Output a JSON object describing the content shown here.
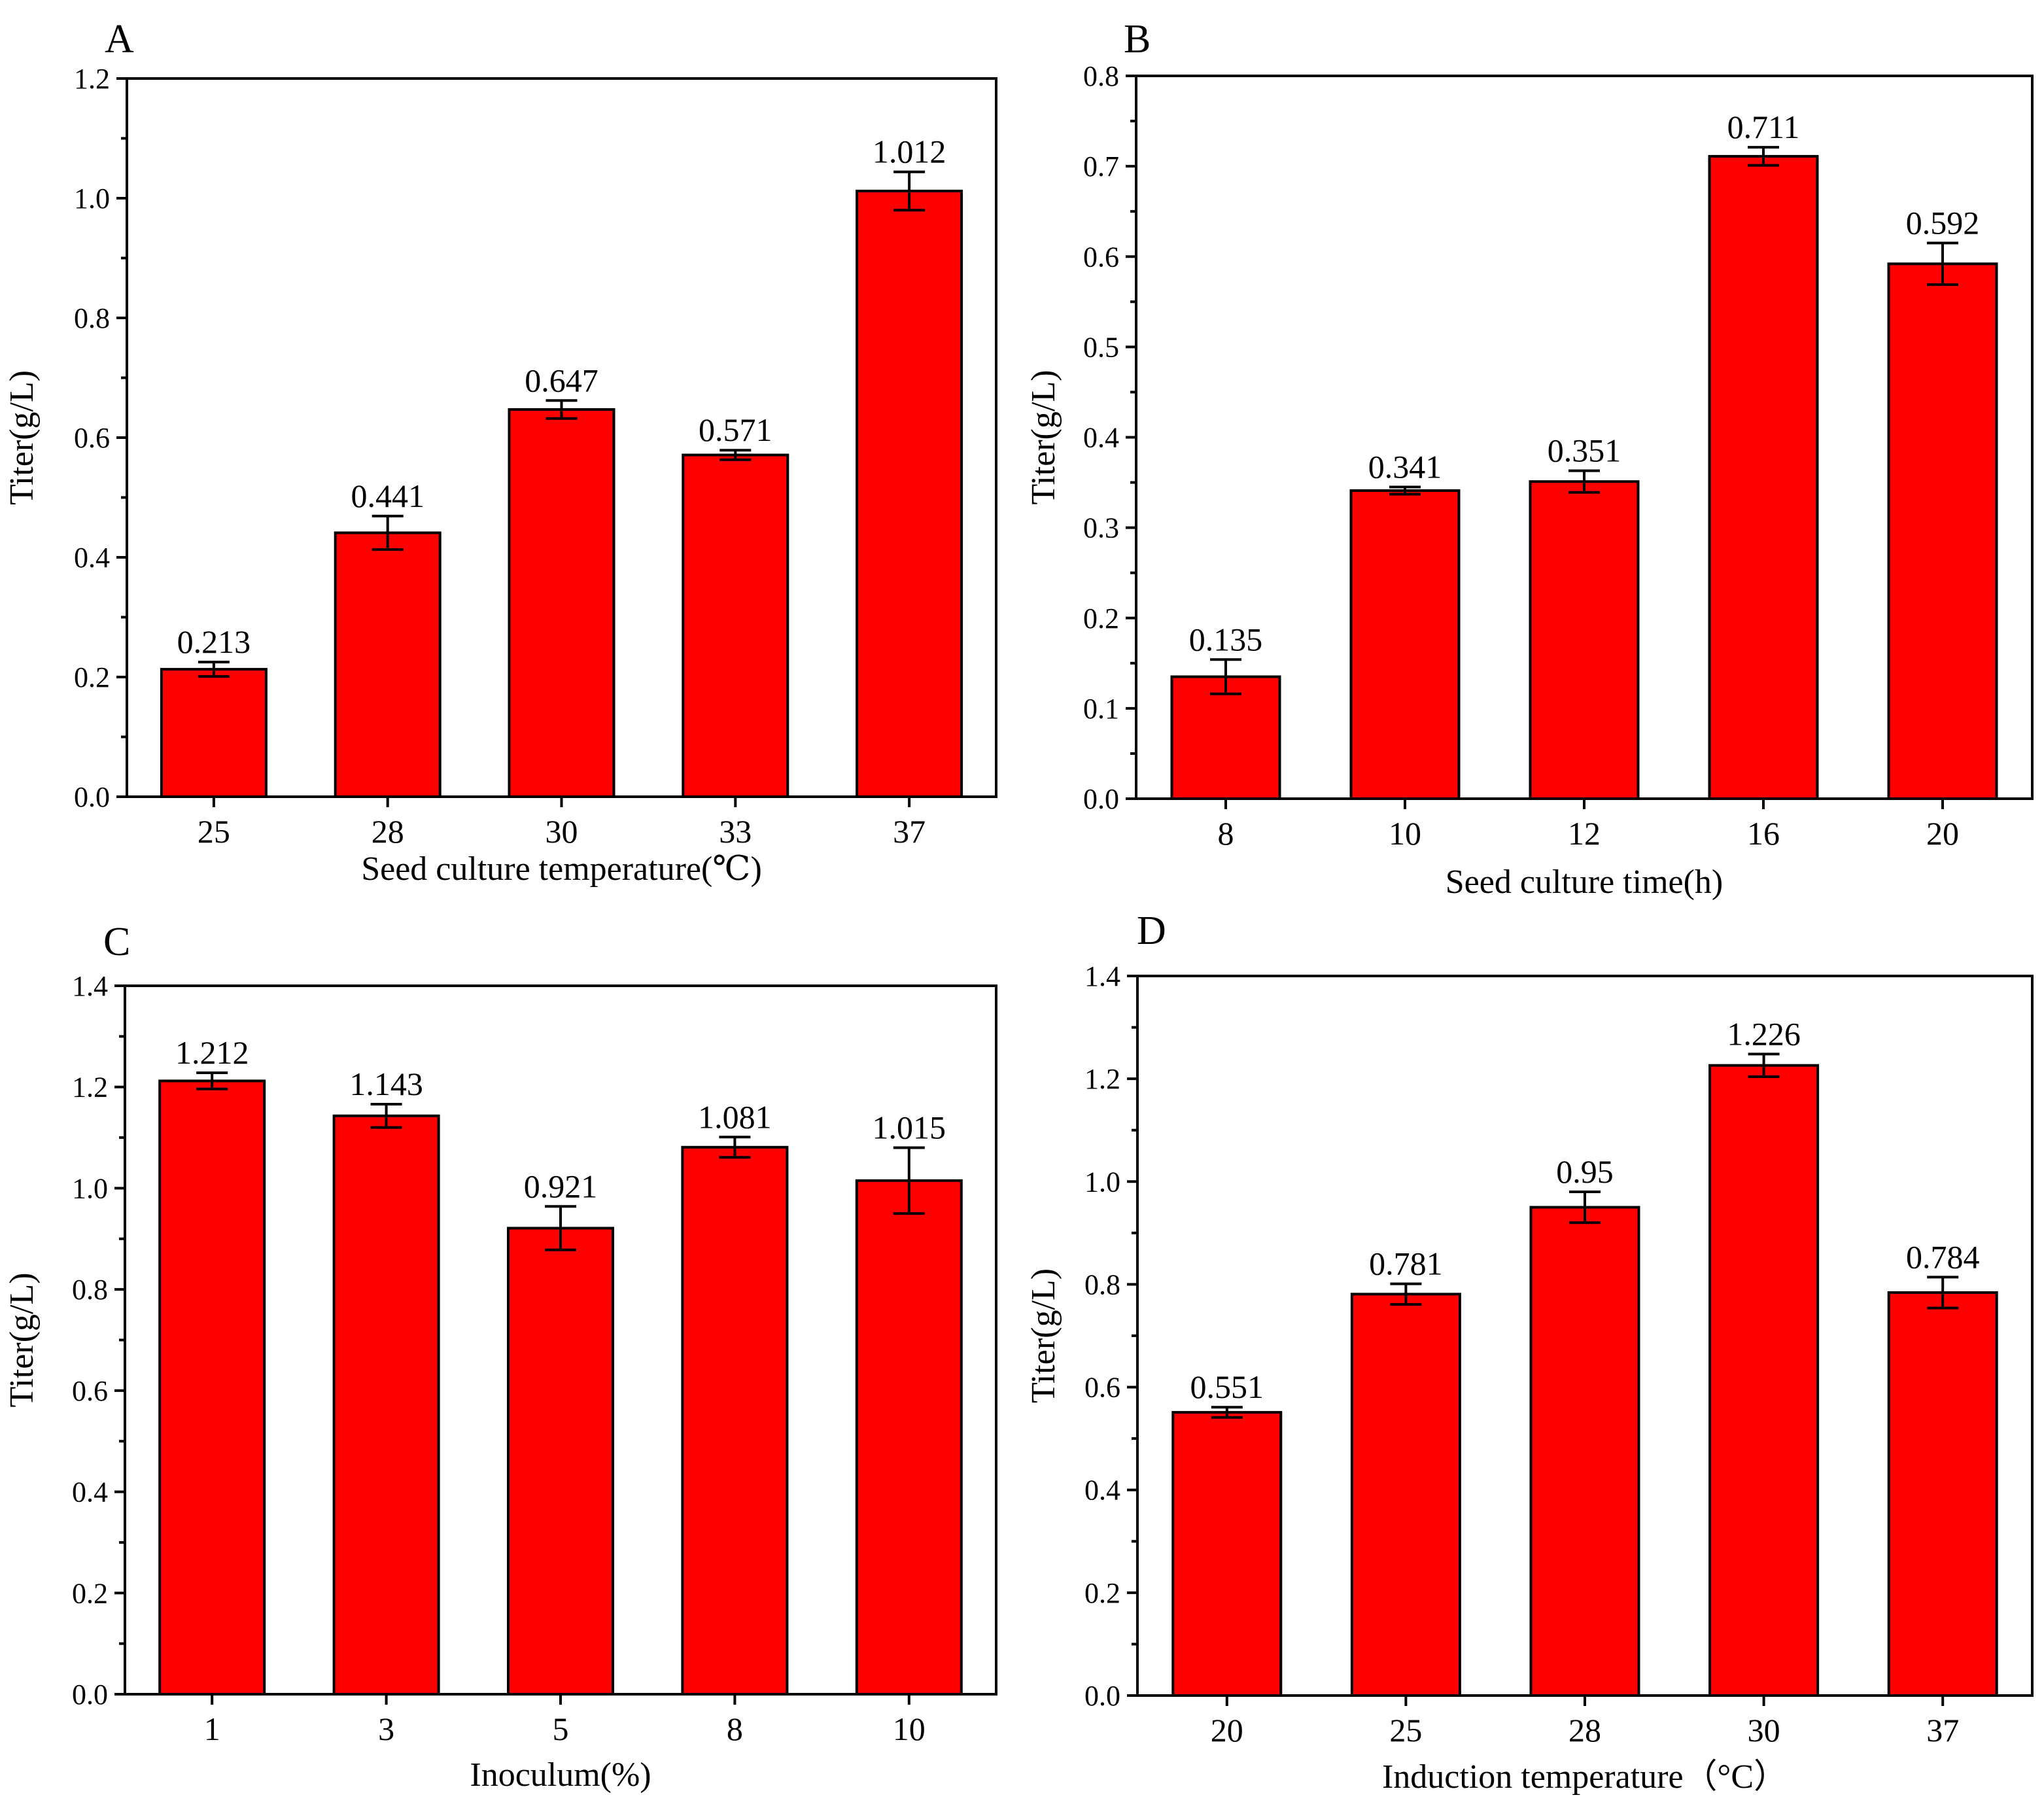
{
  "colors": {
    "bar": "#ff0000",
    "outline": "#000000",
    "background": "#ffffff"
  },
  "chart_data": [
    {
      "panel": "A",
      "type": "bar",
      "categories": [
        "25",
        "28",
        "30",
        "33",
        "37"
      ],
      "values": [
        0.213,
        0.441,
        0.647,
        0.571,
        1.012
      ],
      "errors": [
        0.012,
        0.028,
        0.015,
        0.008,
        0.032
      ],
      "data_labels": [
        "0.213",
        "0.441",
        "0.647",
        "0.571",
        "1.012"
      ],
      "xlabel": "Seed culture temperature(℃)",
      "ylabel": "Titer(g/L)",
      "ylim": [
        0,
        1.2
      ],
      "yticks": [
        "0.0",
        "0.2",
        "0.4",
        "0.6",
        "0.8",
        "1.0",
        "1.2"
      ],
      "grid": false
    },
    {
      "panel": "B",
      "type": "bar",
      "categories": [
        "8",
        "10",
        "12",
        "16",
        "20"
      ],
      "values": [
        0.135,
        0.341,
        0.351,
        0.711,
        0.592
      ],
      "errors": [
        0.019,
        0.004,
        0.012,
        0.01,
        0.023
      ],
      "data_labels": [
        "0.135",
        "0.341",
        "0.351",
        "0.711",
        "0.592"
      ],
      "xlabel": "Seed culture time(h)",
      "ylabel": "Titer(g/L)",
      "ylim": [
        0,
        0.8
      ],
      "yticks": [
        "0.0",
        "0.1",
        "0.2",
        "0.3",
        "0.4",
        "0.5",
        "0.6",
        "0.7",
        "0.8"
      ],
      "grid": false
    },
    {
      "panel": "C",
      "type": "bar",
      "categories": [
        "1",
        "3",
        "5",
        "8",
        "10"
      ],
      "values": [
        1.212,
        1.143,
        0.921,
        1.081,
        1.015
      ],
      "errors": [
        0.016,
        0.023,
        0.043,
        0.02,
        0.065
      ],
      "data_labels": [
        "1.212",
        "1.143",
        "0.921",
        "1.081",
        "1.015"
      ],
      "xlabel": "Inoculum(%)",
      "ylabel": "Titer(g/L)",
      "ylim": [
        0,
        1.4
      ],
      "yticks": [
        "0.0",
        "0.2",
        "0.4",
        "0.6",
        "0.8",
        "1.0",
        "1.2",
        "1.4"
      ],
      "grid": false
    },
    {
      "panel": "D",
      "type": "bar",
      "categories": [
        "20",
        "25",
        "28",
        "30",
        "37"
      ],
      "values": [
        0.551,
        0.781,
        0.95,
        1.226,
        0.784
      ],
      "errors": [
        0.01,
        0.02,
        0.03,
        0.022,
        0.03
      ],
      "data_labels": [
        "0.551",
        "0.781",
        "0.95",
        "1.226",
        "0.784"
      ],
      "xlabel": "Induction temperature（°C）",
      "ylabel": "Titer(g/L)",
      "ylim": [
        0,
        1.4
      ],
      "yticks": [
        "0.0",
        "0.2",
        "0.4",
        "0.6",
        "0.8",
        "1.0",
        "1.2",
        "1.4"
      ],
      "grid": false
    }
  ]
}
